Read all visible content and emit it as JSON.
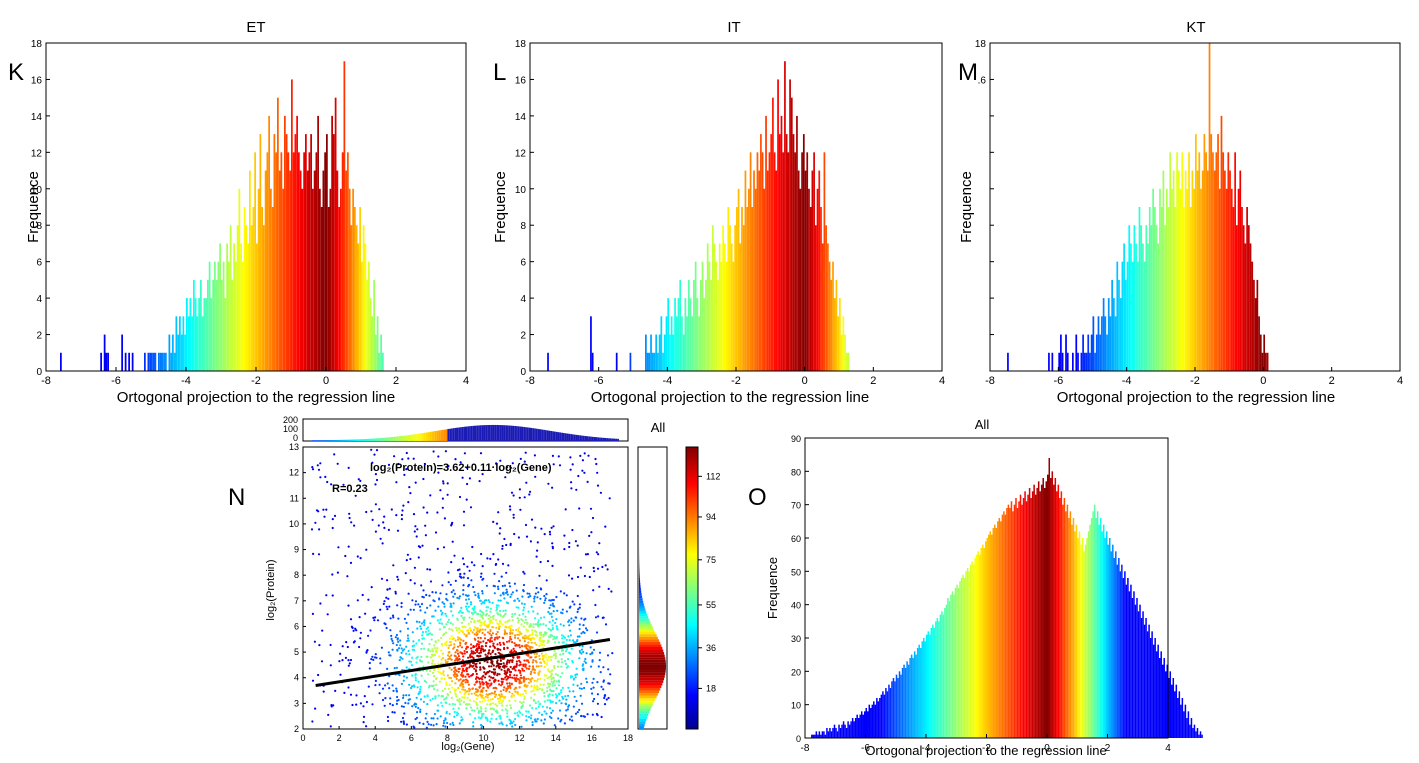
{
  "panel_letters": [
    "K",
    "L",
    "M",
    "N",
    "O"
  ],
  "chart_data": [
    {
      "id": "K",
      "type": "bar",
      "title": "ET",
      "xlabel": "Ortogonal projection to the regression line",
      "ylabel": "Frequence",
      "xlim": [
        -8,
        4
      ],
      "ylim": [
        0,
        18
      ],
      "xticks": [
        "-8",
        "-6",
        "-4",
        "-2",
        "0",
        "2",
        "4"
      ],
      "yticks": [
        "0",
        "2",
        "4",
        "6",
        "8",
        "10",
        "12",
        "14",
        "16",
        "18"
      ],
      "bin_start": -7.6,
      "bin_width": 0.05,
      "colormap": "jet-diverging",
      "values": [
        1,
        0,
        0,
        0,
        0,
        0,
        0,
        0,
        0,
        0,
        0,
        0,
        0,
        0,
        0,
        0,
        0,
        0,
        0,
        0,
        0,
        0,
        0,
        1,
        0,
        2,
        1,
        1,
        0,
        0,
        0,
        0,
        0,
        0,
        0,
        2,
        0,
        1,
        0,
        1,
        0,
        1,
        0,
        0,
        0,
        0,
        0,
        0,
        1,
        0,
        1,
        1,
        1,
        1,
        1,
        0,
        1,
        1,
        1,
        1,
        1,
        0,
        2,
        1,
        2,
        1,
        3,
        2,
        3,
        2,
        3,
        2,
        4,
        3,
        4,
        3,
        5,
        4,
        3,
        4,
        5,
        3,
        4,
        4,
        5,
        6,
        4,
        5,
        6,
        5,
        6,
        7,
        5,
        6,
        4,
        7,
        6,
        8,
        5,
        7,
        6,
        8,
        10,
        7,
        6,
        9,
        8,
        7,
        11,
        8,
        9,
        12,
        7,
        10,
        13,
        9,
        8,
        11,
        12,
        14,
        10,
        9,
        13,
        12,
        15,
        11,
        12,
        10,
        14,
        13,
        12,
        11,
        16,
        12,
        13,
        14,
        12,
        11,
        10,
        12,
        13,
        11,
        12,
        13,
        10,
        11,
        12,
        14,
        10,
        9,
        11,
        12,
        13,
        9,
        10,
        14,
        13,
        15,
        11,
        9,
        10,
        12,
        17,
        11,
        12,
        10,
        8,
        10,
        9,
        8,
        7,
        9,
        6,
        8,
        7,
        5,
        6,
        4,
        3,
        5,
        2,
        3,
        1,
        2,
        1
      ]
    },
    {
      "id": "L",
      "type": "bar",
      "title": "IT",
      "xlabel": "Ortogonal projection to the regression line",
      "ylabel": "Frequence",
      "xlim": [
        -8,
        4
      ],
      "ylim": [
        0,
        18
      ],
      "xticks": [
        "-8",
        "-6",
        "-4",
        "-2",
        "0",
        "2",
        "4"
      ],
      "yticks": [
        "0",
        "2",
        "4",
        "6",
        "8",
        "10",
        "12",
        "14",
        "16",
        "18"
      ],
      "bin_start": -7.5,
      "bin_width": 0.05,
      "colormap": "jet-diverging",
      "values": [
        1,
        0,
        0,
        0,
        0,
        0,
        0,
        0,
        0,
        0,
        0,
        0,
        0,
        0,
        0,
        0,
        0,
        0,
        0,
        0,
        0,
        0,
        0,
        0,
        0,
        3,
        1,
        0,
        0,
        0,
        0,
        0,
        0,
        0,
        0,
        0,
        0,
        0,
        0,
        0,
        1,
        0,
        0,
        0,
        0,
        0,
        0,
        0,
        1,
        0,
        0,
        0,
        0,
        0,
        0,
        0,
        0,
        2,
        1,
        1,
        2,
        1,
        1,
        2,
        1,
        2,
        3,
        1,
        2,
        3,
        4,
        2,
        3,
        2,
        4,
        3,
        4,
        5,
        3,
        2,
        4,
        3,
        5,
        4,
        3,
        5,
        6,
        4,
        3,
        5,
        6,
        4,
        5,
        7,
        6,
        5,
        8,
        7,
        6,
        5,
        7,
        6,
        8,
        7,
        6,
        9,
        8,
        7,
        6,
        8,
        9,
        10,
        7,
        9,
        8,
        11,
        9,
        10,
        12,
        9,
        11,
        10,
        12,
        11,
        13,
        12,
        10,
        14,
        11,
        12,
        13,
        15,
        12,
        11,
        16,
        13,
        14,
        12,
        17,
        13,
        12,
        16,
        15,
        13,
        12,
        14,
        11,
        10,
        12,
        13,
        11,
        12,
        10,
        9,
        11,
        12,
        8,
        10,
        11,
        9,
        7,
        12,
        8,
        7,
        6,
        5,
        6,
        4,
        5,
        3,
        4,
        2,
        3,
        2,
        1,
        1
      ]
    },
    {
      "id": "M",
      "type": "bar",
      "title": "KT",
      "xlabel": "Ortogonal projection to the regression line",
      "ylabel": "Frequence",
      "xlim": [
        -8,
        4
      ],
      "ylim": [
        0,
        18
      ],
      "xticks": [
        "-8",
        "-6",
        "-4",
        "-2",
        "0",
        "2",
        "4"
      ],
      "yticks": [
        "",
        "",
        "",
        "",
        "",
        "",
        "",
        "",
        ".6",
        "18"
      ],
      "bin_start": -7.5,
      "bin_width": 0.05,
      "colormap": "jet-diverging",
      "values": [
        1,
        0,
        0,
        0,
        0,
        0,
        0,
        0,
        0,
        0,
        0,
        0,
        0,
        0,
        0,
        0,
        0,
        0,
        0,
        0,
        0,
        0,
        0,
        0,
        1,
        0,
        1,
        0,
        0,
        0,
        1,
        2,
        1,
        0,
        2,
        1,
        0,
        0,
        1,
        0,
        2,
        1,
        0,
        1,
        2,
        1,
        1,
        2,
        1,
        2,
        3,
        1,
        2,
        3,
        2,
        3,
        4,
        3,
        2,
        4,
        3,
        5,
        4,
        3,
        6,
        5,
        4,
        6,
        7,
        5,
        6,
        8,
        7,
        6,
        8,
        7,
        6,
        9,
        8,
        7,
        6,
        8,
        7,
        9,
        8,
        10,
        9,
        8,
        7,
        10,
        9,
        11,
        8,
        10,
        9,
        12,
        10,
        11,
        9,
        12,
        11,
        10,
        12,
        9,
        11,
        10,
        12,
        9,
        11,
        10,
        13,
        11,
        12,
        10,
        11,
        13,
        12,
        11,
        18,
        13,
        12,
        11,
        12,
        13,
        10,
        14,
        12,
        11,
        10,
        12,
        11,
        10,
        9,
        12,
        8,
        10,
        11,
        9,
        8,
        7,
        9,
        8,
        7,
        6,
        5,
        4,
        5,
        3,
        2,
        1,
        2,
        1,
        1
      ]
    },
    {
      "id": "O",
      "type": "bar",
      "title": "All",
      "xlabel": "Ortogonal projection to the regression line",
      "ylabel": "Frequence",
      "xlim": [
        -8,
        4
      ],
      "ylim": [
        0,
        90
      ],
      "xticks": [
        "-8",
        "-6",
        "-4",
        "-2",
        "0",
        "2",
        "4"
      ],
      "yticks": [
        "0",
        "10",
        "20",
        "30",
        "40",
        "50",
        "60",
        "70",
        "80",
        "90"
      ],
      "bin_start": -7.8,
      "bin_width": 0.05,
      "colormap": "jet-diverging",
      "values": [
        1,
        1,
        1,
        2,
        1,
        2,
        1,
        2,
        2,
        1,
        3,
        2,
        3,
        2,
        3,
        4,
        3,
        2,
        4,
        3,
        4,
        5,
        4,
        3,
        5,
        4,
        5,
        6,
        5,
        6,
        7,
        6,
        7,
        8,
        7,
        8,
        9,
        8,
        10,
        9,
        10,
        11,
        10,
        12,
        11,
        12,
        13,
        14,
        13,
        15,
        14,
        16,
        15,
        17,
        18,
        17,
        19,
        18,
        20,
        19,
        21,
        22,
        21,
        23,
        22,
        24,
        25,
        24,
        26,
        25,
        27,
        28,
        27,
        29,
        30,
        29,
        31,
        32,
        31,
        33,
        34,
        33,
        35,
        36,
        35,
        37,
        38,
        37,
        39,
        40,
        42,
        41,
        43,
        44,
        43,
        45,
        46,
        45,
        47,
        48,
        49,
        48,
        50,
        51,
        50,
        52,
        53,
        52,
        54,
        55,
        56,
        55,
        57,
        58,
        57,
        59,
        60,
        61,
        62,
        61,
        63,
        64,
        63,
        65,
        66,
        65,
        67,
        68,
        67,
        69,
        70,
        69,
        71,
        68,
        70,
        72,
        69,
        71,
        73,
        70,
        72,
        74,
        71,
        73,
        75,
        72,
        74,
        76,
        73,
        75,
        77,
        74,
        76,
        78,
        75,
        77,
        79,
        84,
        78,
        80,
        76,
        78,
        74,
        76,
        72,
        74,
        70,
        72,
        68,
        70,
        66,
        68,
        64,
        66,
        62,
        64,
        60,
        62,
        58,
        60,
        56,
        58,
        60,
        62,
        64,
        66,
        68,
        70,
        66,
        68,
        64,
        66,
        62,
        64,
        60,
        62,
        58,
        60,
        56,
        58,
        54,
        56,
        52,
        54,
        50,
        52,
        48,
        50,
        46,
        48,
        44,
        46,
        42,
        44,
        40,
        42,
        38,
        40,
        36,
        38,
        34,
        36,
        32,
        34,
        30,
        32,
        28,
        30,
        26,
        28,
        24,
        26,
        22,
        24,
        20,
        22,
        18,
        20,
        16,
        18,
        14,
        16,
        12,
        14,
        10,
        12,
        8,
        10,
        6,
        8,
        4,
        6,
        3,
        4,
        2,
        3,
        1,
        2,
        1
      ]
    },
    {
      "id": "N",
      "type": "scatter",
      "title": "",
      "xlabel": "log₂(Gene)",
      "ylabel": "log₂(Protein)",
      "xlim": [
        0,
        18
      ],
      "ylim": [
        2,
        13
      ],
      "xticks": [
        "0",
        "2",
        "4",
        "6",
        "8",
        "10",
        "12",
        "14",
        "16",
        "18"
      ],
      "yticks": [
        "2",
        "3",
        "4",
        "5",
        "6",
        "7",
        "8",
        "9",
        "10",
        "11",
        "12",
        "13"
      ],
      "annotations": [
        "log₂(Protein)=3.62+0.11·log₂(Gene)",
        "R=0.23"
      ],
      "regression": {
        "intercept": 3.62,
        "slope": 0.11,
        "x_range": [
          0.7,
          17
        ]
      },
      "density_center": {
        "x": 10.5,
        "y": 4.6
      },
      "marginal_top": {
        "yticks": [
          "0",
          "100",
          "200"
        ],
        "ylim": [
          0,
          200
        ]
      },
      "marginal_right_title": "All",
      "colorbar": {
        "ticks": [
          "18",
          "36",
          "55",
          "75",
          "94",
          "112"
        ],
        "range": [
          0,
          125
        ]
      }
    }
  ]
}
